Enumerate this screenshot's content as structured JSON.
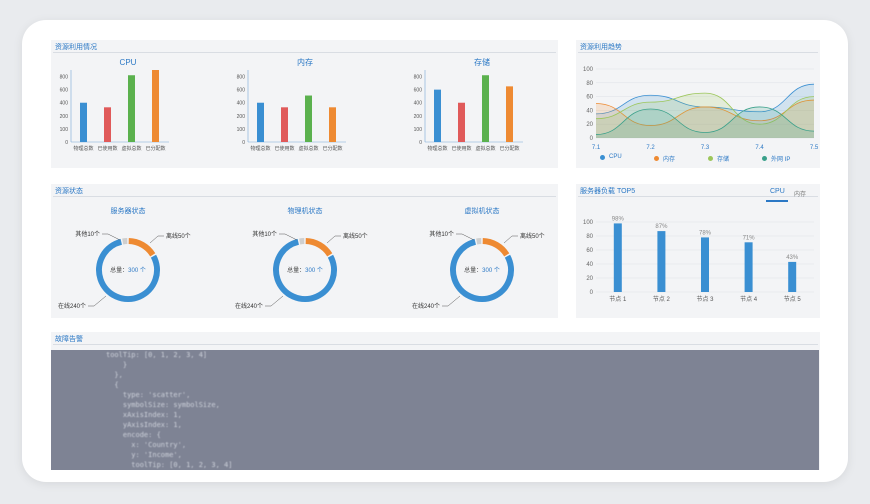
{
  "resource_usage": {
    "title": "资源利用情况",
    "xcats": [
      "物理总数",
      "已使用数",
      "虚拟总数",
      "已分配数"
    ],
    "yticks": [
      "0",
      "100",
      "200",
      "400",
      "600",
      "800"
    ],
    "colors": [
      "#3a8fd2",
      "#e05a5a",
      "#5bb14e",
      "#ee8a32"
    ]
  },
  "resource_trend": {
    "title": "资源利用趋势"
  },
  "resource_status": {
    "title": "资源状态"
  },
  "server_load": {
    "title": "服务器负载 TOP5",
    "tabs": [
      "CPU",
      "内存"
    ]
  },
  "fault_alarm": {
    "title": "故障告警",
    "code_lines": [
      "toolTip: [0, 1, 2, 3, 4]",
      "    }",
      "  },",
      "  {",
      "    type: 'scatter',",
      "    symbolSize: symbolSize,",
      "    xAxisIndex: 1,",
      "    yAxisIndex: 1,",
      "    encode: {",
      "      x: 'Country',",
      "      y: 'Income',",
      "      toolTip: [0, 1, 2, 3, 4]"
    ]
  },
  "chart_data": [
    {
      "type": "bar",
      "title": "CPU",
      "categories": [
        "物理总数",
        "已使用数",
        "虚拟总数",
        "已分配数"
      ],
      "values": [
        400,
        330,
        820,
        900
      ],
      "ylim": [
        0,
        900
      ],
      "yticks": [
        0,
        100,
        200,
        400,
        600,
        800
      ]
    },
    {
      "type": "bar",
      "title": "内存",
      "categories": [
        "物理总数",
        "已使用数",
        "虚拟总数",
        "已分配数"
      ],
      "values": [
        400,
        330,
        510,
        330
      ],
      "ylim": [
        0,
        900
      ],
      "yticks": [
        0,
        100,
        200,
        400,
        600,
        800
      ]
    },
    {
      "type": "bar",
      "title": "存储",
      "categories": [
        "物理总数",
        "已使用数",
        "虚拟总数",
        "已分配数"
      ],
      "values": [
        600,
        400,
        820,
        650
      ],
      "ylim": [
        0,
        900
      ],
      "yticks": [
        0,
        100,
        200,
        400,
        600,
        800
      ]
    },
    {
      "type": "area",
      "title": "",
      "x": [
        "7.1",
        "7.2",
        "7.3",
        "7.4",
        "7.5"
      ],
      "ylim": [
        0,
        100
      ],
      "yticks": [
        0,
        20,
        40,
        60,
        80,
        100
      ],
      "series": [
        {
          "name": "CPU",
          "color": "#3a8fd2",
          "values": [
            35,
            62,
            45,
            38,
            78
          ]
        },
        {
          "name": "内存",
          "color": "#ee8a32",
          "values": [
            50,
            18,
            45,
            25,
            55
          ]
        },
        {
          "name": "存储",
          "color": "#9cc65a",
          "values": [
            28,
            52,
            65,
            20,
            60
          ]
        },
        {
          "name": "外网 IP",
          "color": "#3aa08a",
          "values": [
            5,
            42,
            8,
            45,
            10
          ]
        }
      ]
    },
    {
      "type": "pie",
      "title": "服务器状态",
      "center_label": "总量：",
      "center_value": "300 个",
      "slices": [
        {
          "label": "离线50个",
          "value": 50,
          "color": "#ee8a32"
        },
        {
          "label": "在线240个",
          "value": 240,
          "color": "#3a8fd2"
        },
        {
          "label": "其他10个",
          "value": 10,
          "color": "#cfcfcf"
        }
      ]
    },
    {
      "type": "pie",
      "title": "物理机状态",
      "center_label": "总量：",
      "center_value": "300 个",
      "slices": [
        {
          "label": "离线50个",
          "value": 50,
          "color": "#ee8a32"
        },
        {
          "label": "在线240个",
          "value": 240,
          "color": "#3a8fd2"
        },
        {
          "label": "其他10个",
          "value": 10,
          "color": "#cfcfcf"
        }
      ]
    },
    {
      "type": "pie",
      "title": "虚拟机状态",
      "center_label": "总量：",
      "center_value": "300 个",
      "slices": [
        {
          "label": "离线50个",
          "value": 50,
          "color": "#ee8a32"
        },
        {
          "label": "在线240个",
          "value": 240,
          "color": "#3a8fd2"
        },
        {
          "label": "其他10个",
          "value": 10,
          "color": "#cfcfcf"
        }
      ]
    },
    {
      "type": "bar",
      "title": "",
      "categories": [
        "节点 1",
        "节点 2",
        "节点 3",
        "节点 4",
        "节点 5"
      ],
      "values": [
        98,
        87,
        78,
        71,
        43
      ],
      "labels": [
        "98%",
        "87%",
        "78%",
        "71%",
        "43%"
      ],
      "ylim": [
        0,
        100
      ],
      "yticks": [
        0,
        20,
        40,
        60,
        80,
        100
      ],
      "color": "#3a8fd2"
    }
  ]
}
